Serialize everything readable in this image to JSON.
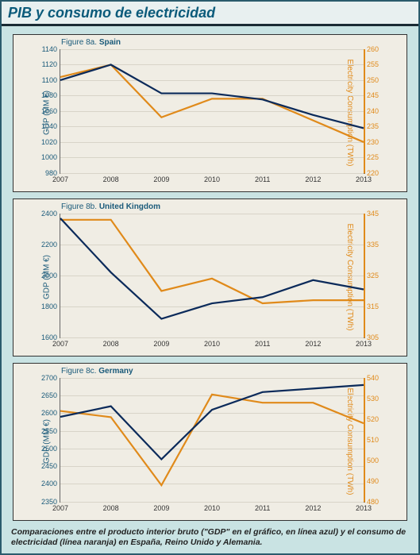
{
  "title": "PIB y consumo de electricidad",
  "caption": "Comparaciones entre el producto interior bruto (\"GDP\" en el gráfico, en línea azul) y el consumo de electricidad (línea naranja) en España, Reino Unido y Alemania.",
  "x_categories": [
    "2007",
    "2008",
    "2009",
    "2010",
    "2011",
    "2012",
    "2013"
  ],
  "left_axis_title": "GDP (MM €)",
  "right_axis_title": "Electricity Consumption (TWh)",
  "colors": {
    "gdp_line": "#0b2a5a",
    "elec_line": "#e08a1a",
    "plot_bg": "#f0ede4",
    "page_bg": "#c9e3e3",
    "grid": "#d8d4c8",
    "title_color": "#0a5a7a"
  },
  "line_width": 2.2,
  "charts": [
    {
      "id": "spain",
      "fig_prefix": "Figure 8a.",
      "fig_name": "Spain",
      "yl_min": 980,
      "yl_max": 1140,
      "yl_step": 20,
      "yr_min": 220,
      "yr_max": 260,
      "yr_step": 5,
      "gdp": [
        1100,
        1120,
        1083,
        1083,
        1075,
        1055,
        1038
      ],
      "elec": [
        251,
        255,
        238,
        244,
        244,
        237,
        230
      ]
    },
    {
      "id": "uk",
      "fig_prefix": "Figure 8b.",
      "fig_name": "United Kingdom",
      "yl_min": 1600,
      "yl_max": 2400,
      "yl_step": 200,
      "yr_min": 305,
      "yr_max": 345,
      "yr_step": 10,
      "gdp": [
        2370,
        2020,
        1720,
        1820,
        1860,
        1970,
        1910
      ],
      "elec": [
        343,
        343,
        320,
        324,
        316,
        317,
        317
      ]
    },
    {
      "id": "germany",
      "fig_prefix": "Figure 8c.",
      "fig_name": "Germany",
      "yl_min": 2350,
      "yl_max": 2700,
      "yl_step": 50,
      "yr_min": 480,
      "yr_max": 540,
      "yr_step": 10,
      "gdp": [
        2590,
        2620,
        2470,
        2610,
        2660,
        2670,
        2680
      ],
      "elec": [
        524,
        521,
        488,
        532,
        528,
        528,
        518
      ]
    }
  ]
}
